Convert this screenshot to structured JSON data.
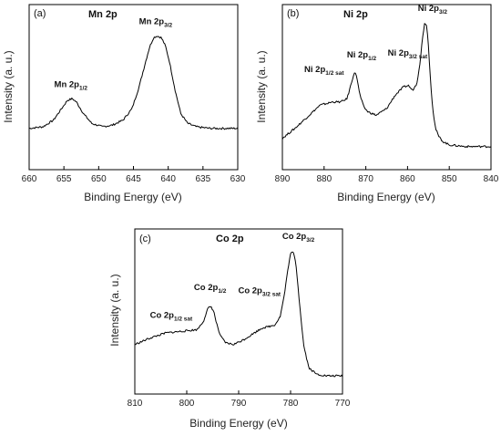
{
  "chart_data": [
    {
      "type": "line",
      "panel_label": "(a)",
      "title": "Mn 2p",
      "xlabel": "Binding Energy (eV)",
      "ylabel": "Intensity (a. u.)",
      "xlim": [
        660,
        630
      ],
      "x_reversed": true,
      "x_ticks": [
        660,
        655,
        650,
        645,
        640,
        635,
        630
      ],
      "y_ticks_shown": false,
      "ylim": [
        0,
        1
      ],
      "series": [
        {
          "x": [
            660,
            658,
            656.5,
            655.5,
            654.5,
            653.8,
            653.2,
            652.2,
            651,
            649.5,
            648,
            646.5,
            645.2,
            644.2,
            643.4,
            642.7,
            642.1,
            641.6,
            641.0,
            640.4,
            639.8,
            639.0,
            638.2,
            637.2,
            636,
            634,
            632,
            630
          ],
          "y": [
            0.25,
            0.26,
            0.3,
            0.36,
            0.42,
            0.43,
            0.41,
            0.34,
            0.28,
            0.26,
            0.27,
            0.3,
            0.37,
            0.5,
            0.63,
            0.74,
            0.8,
            0.81,
            0.8,
            0.75,
            0.65,
            0.48,
            0.34,
            0.28,
            0.26,
            0.25,
            0.25,
            0.25
          ]
        }
      ],
      "annotations": [
        {
          "text": "Mn 2p",
          "sub": "1/2",
          "x": 654,
          "y": 0.5
        },
        {
          "text": "Mn 2p",
          "sub": "3/2",
          "x": 641.8,
          "y": 0.88
        }
      ]
    },
    {
      "type": "line",
      "panel_label": "(b)",
      "title": "Ni 2p",
      "xlabel": "Binding Energy (eV)",
      "ylabel": "Intensity (a. u.)",
      "xlim": [
        890,
        840
      ],
      "x_reversed": true,
      "x_ticks": [
        890,
        880,
        870,
        860,
        850,
        840
      ],
      "y_ticks_shown": false,
      "ylim": [
        0,
        1
      ],
      "series": [
        {
          "x": [
            890,
            887,
            884,
            881,
            878,
            876,
            874.5,
            873.5,
            872.8,
            872.2,
            871.5,
            870.5,
            869.5,
            867.5,
            865,
            863,
            861,
            859.8,
            858.8,
            857.8,
            857,
            856.4,
            855.9,
            855.5,
            855.1,
            854.6,
            854,
            853.3,
            852.5,
            851.5,
            850,
            846,
            843,
            840
          ],
          "y": [
            0.19,
            0.25,
            0.32,
            0.39,
            0.41,
            0.41,
            0.43,
            0.52,
            0.59,
            0.57,
            0.46,
            0.38,
            0.35,
            0.33,
            0.37,
            0.45,
            0.5,
            0.51,
            0.48,
            0.52,
            0.65,
            0.8,
            0.89,
            0.88,
            0.8,
            0.58,
            0.38,
            0.25,
            0.2,
            0.17,
            0.15,
            0.14,
            0.14,
            0.14
          ]
        }
      ],
      "annotations": [
        {
          "text": "Ni 2p",
          "sub": "1/2 sat",
          "x": 880,
          "y": 0.59
        },
        {
          "text": "Ni 2p",
          "sub": "1/2",
          "x": 871,
          "y": 0.68
        },
        {
          "text": "Ni 2p",
          "sub": "3/2 sat",
          "x": 860,
          "y": 0.69
        },
        {
          "text": "Ni 2p",
          "sub": "3/2",
          "x": 854,
          "y": 0.96
        }
      ]
    },
    {
      "type": "line",
      "panel_label": "(c)",
      "title": "Co 2p",
      "xlabel": "Binding Energy (eV)",
      "ylabel": "Intensity (a. u.)",
      "xlim": [
        810,
        770
      ],
      "x_reversed": true,
      "x_ticks": [
        810,
        800,
        790,
        780,
        770
      ],
      "y_ticks_shown": false,
      "ylim": [
        0,
        1
      ],
      "series": [
        {
          "x": [
            810,
            807,
            804,
            801,
            798,
            796.8,
            795.9,
            795.3,
            794.8,
            794.2,
            793.5,
            792.5,
            791,
            789,
            787,
            785.5,
            784,
            783,
            782,
            781.2,
            780.5,
            780,
            779.5,
            779,
            778.3,
            777.5,
            776.5,
            775,
            773,
            771,
            770
          ],
          "y": [
            0.3,
            0.34,
            0.37,
            0.38,
            0.39,
            0.44,
            0.52,
            0.53,
            0.5,
            0.42,
            0.35,
            0.31,
            0.3,
            0.33,
            0.37,
            0.4,
            0.41,
            0.42,
            0.47,
            0.6,
            0.76,
            0.85,
            0.86,
            0.8,
            0.56,
            0.3,
            0.16,
            0.12,
            0.11,
            0.11,
            0.11
          ]
        }
      ],
      "annotations": [
        {
          "text": "Co 2p",
          "sub": "1/2 sat",
          "x": 803,
          "y": 0.46
        },
        {
          "text": "Co 2p",
          "sub": "1/2",
          "x": 795.5,
          "y": 0.63
        },
        {
          "text": "Co 2p",
          "sub": "3/2 sat",
          "x": 786,
          "y": 0.61
        },
        {
          "text": "Co 2p",
          "sub": "3/2",
          "x": 778.5,
          "y": 0.94
        }
      ]
    }
  ]
}
